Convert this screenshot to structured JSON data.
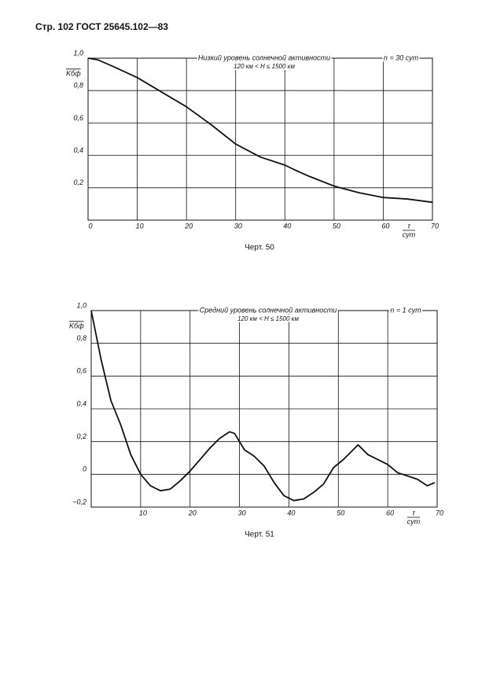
{
  "header": {
    "title": "Стр. 102 ГОСТ 25645.102—83"
  },
  "chart_data": [
    {
      "type": "line",
      "title": "Низкий уровень солнечной активности",
      "subtitle": "120 км < H ≤ 1500 км",
      "annotation": "n = 30 сут",
      "y_label": "Kбф",
      "x_label_top": "τ",
      "x_label_bottom": "сут",
      "caption": "Черт. 50",
      "color": "#111111",
      "grid": true,
      "xlim": [
        0,
        70
      ],
      "ylim": [
        0,
        1.0
      ],
      "xticks": [
        0,
        10,
        20,
        30,
        40,
        50,
        60,
        70
      ],
      "yticks": [
        {
          "value": 0.2,
          "label": "0,2"
        },
        {
          "value": 0.4,
          "label": "0,4"
        },
        {
          "value": 0.6,
          "label": "0,6"
        },
        {
          "value": 0.8,
          "label": "0,8"
        },
        {
          "value": 1.0,
          "label": "1,0"
        }
      ],
      "x": [
        0,
        2,
        5,
        10,
        15,
        20,
        25,
        30,
        35,
        40,
        42,
        45,
        50,
        55,
        60,
        65,
        70
      ],
      "values": [
        1.0,
        0.99,
        0.95,
        0.88,
        0.79,
        0.7,
        0.59,
        0.47,
        0.39,
        0.34,
        0.31,
        0.27,
        0.21,
        0.17,
        0.14,
        0.13,
        0.11
      ]
    },
    {
      "type": "line",
      "title": "Средний уровень солнечной активности",
      "subtitle": "120 км < H ≤ 1500 км",
      "annotation": "n = 1 сут",
      "y_label": "Kбф",
      "x_label_top": "τ",
      "x_label_bottom": "сут",
      "caption": "Черт. 51",
      "color": "#111111",
      "grid": true,
      "xlim": [
        0,
        70
      ],
      "ylim": [
        -0.2,
        1.0
      ],
      "xticks": [
        10,
        20,
        30,
        40,
        50,
        60,
        70
      ],
      "yticks": [
        {
          "value": -0.2,
          "label": "−0,2"
        },
        0,
        {
          "value": 0.2,
          "label": "0,2"
        },
        {
          "value": 0.4,
          "label": "0,4"
        },
        {
          "value": 0.6,
          "label": "0,6"
        },
        {
          "value": 0.8,
          "label": "0,8"
        },
        {
          "value": 1.0,
          "label": "1,0"
        }
      ],
      "x": [
        0,
        1,
        2,
        4,
        6,
        8,
        10,
        12,
        14,
        16,
        18,
        20,
        22,
        24,
        26,
        28,
        29,
        31,
        33,
        35,
        37,
        39,
        41,
        43,
        45,
        47,
        49,
        51,
        53,
        54,
        56,
        58,
        60,
        62,
        64,
        66,
        68,
        69.5
      ],
      "values": [
        1.0,
        0.85,
        0.7,
        0.45,
        0.3,
        0.12,
        0.0,
        -0.07,
        -0.1,
        -0.09,
        -0.04,
        0.02,
        0.09,
        0.16,
        0.22,
        0.26,
        0.25,
        0.15,
        0.11,
        0.05,
        -0.05,
        -0.13,
        -0.16,
        -0.15,
        -0.11,
        -0.06,
        0.04,
        0.09,
        0.15,
        0.18,
        0.12,
        0.09,
        0.06,
        0.01,
        -0.01,
        -0.03,
        -0.07,
        -0.05
      ]
    }
  ]
}
